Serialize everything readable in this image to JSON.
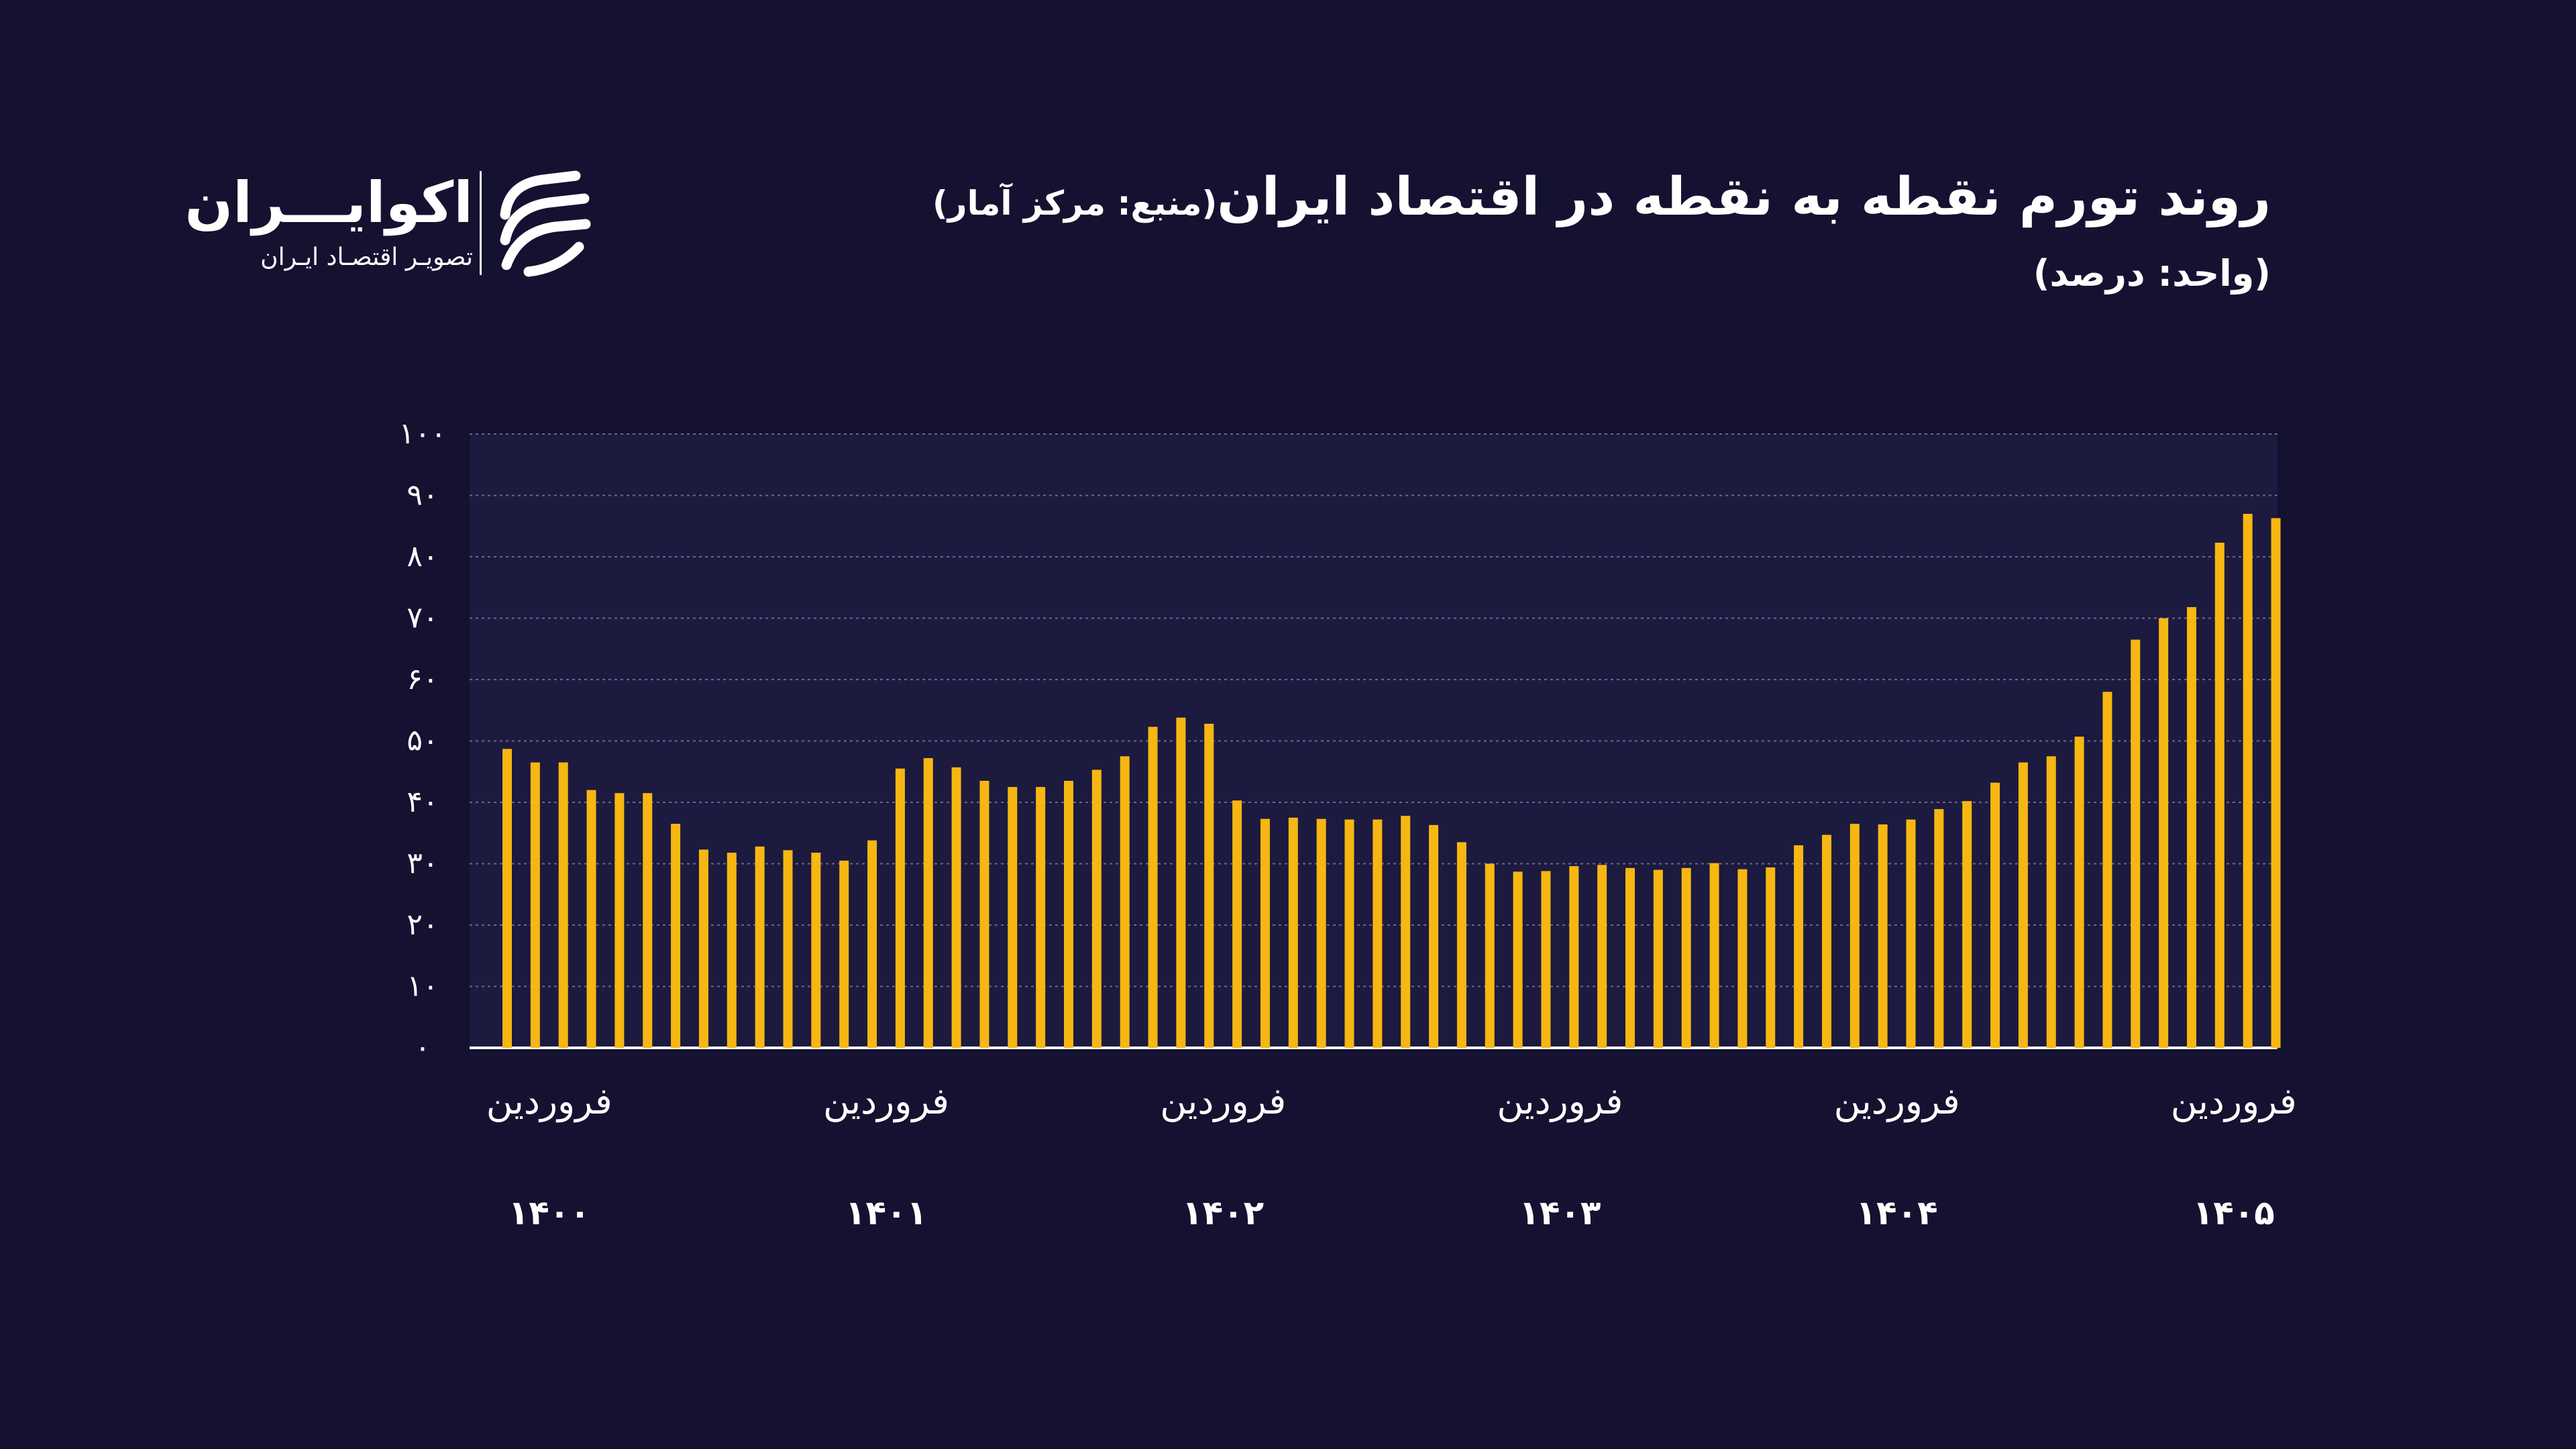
{
  "header": {
    "title": "روند تورم نقطه به نقطه در اقتصاد ایران",
    "source": "(منبع: مرکز آمار)",
    "unit": "(واحد: درصد)"
  },
  "logo": {
    "name": "اکوایـــران",
    "tagline": "تصویـر اقتصـاد ایـران",
    "icon": "ecoiran-stripes-logo-icon"
  },
  "colors": {
    "background": "#141230",
    "plot_background": "#1c1a3e",
    "bar": "#f7b712",
    "gridline": "#6a6890",
    "text": "#ffffff"
  },
  "chart_data": {
    "type": "bar",
    "title": "روند تورم نقطه به نقطه در اقتصاد ایران",
    "ylabel": "",
    "xlabel": "",
    "ylim": [
      0,
      100
    ],
    "grid": true,
    "y_ticks": [
      "۰",
      "۱۰",
      "۲۰",
      "۳۰",
      "۴۰",
      "۵۰",
      "۶۰",
      "۷۰",
      "۸۰",
      "۹۰",
      "۱۰۰"
    ],
    "x_tick_labels": [
      {
        "month": "فروردین",
        "year": "۱۴۰۰"
      },
      {
        "month": "فروردین",
        "year": "۱۴۰۱"
      },
      {
        "month": "فروردین",
        "year": "۱۴۰۲"
      },
      {
        "month": "فروردین",
        "year": "۱۴۰۳"
      },
      {
        "month": "فروردین",
        "year": "۱۴۰۴"
      },
      {
        "month": "فروردین",
        "year": "۱۴۰۵"
      }
    ],
    "values": [
      48.7,
      46.5,
      46.5,
      42,
      41.5,
      41.5,
      36.5,
      32.3,
      31.8,
      32.8,
      32.2,
      31.8,
      30.5,
      33.8,
      45.5,
      47.2,
      45.7,
      43.5,
      42.5,
      42.5,
      43.5,
      45.3,
      47.5,
      52.3,
      53.8,
      52.8,
      40.3,
      37.3,
      37.5,
      37.3,
      37.2,
      37.2,
      37.8,
      36.3,
      33.5,
      30,
      28.7,
      28.8,
      29.6,
      29.8,
      29.3,
      29,
      29.3,
      30.1,
      29.1,
      29.4,
      33,
      34.7,
      36.5,
      36.4,
      37.2,
      38.9,
      40.2,
      43.2,
      46.5,
      47.5,
      50.7,
      58,
      66.5,
      70,
      71.8,
      82.3,
      87,
      86.3
    ]
  }
}
